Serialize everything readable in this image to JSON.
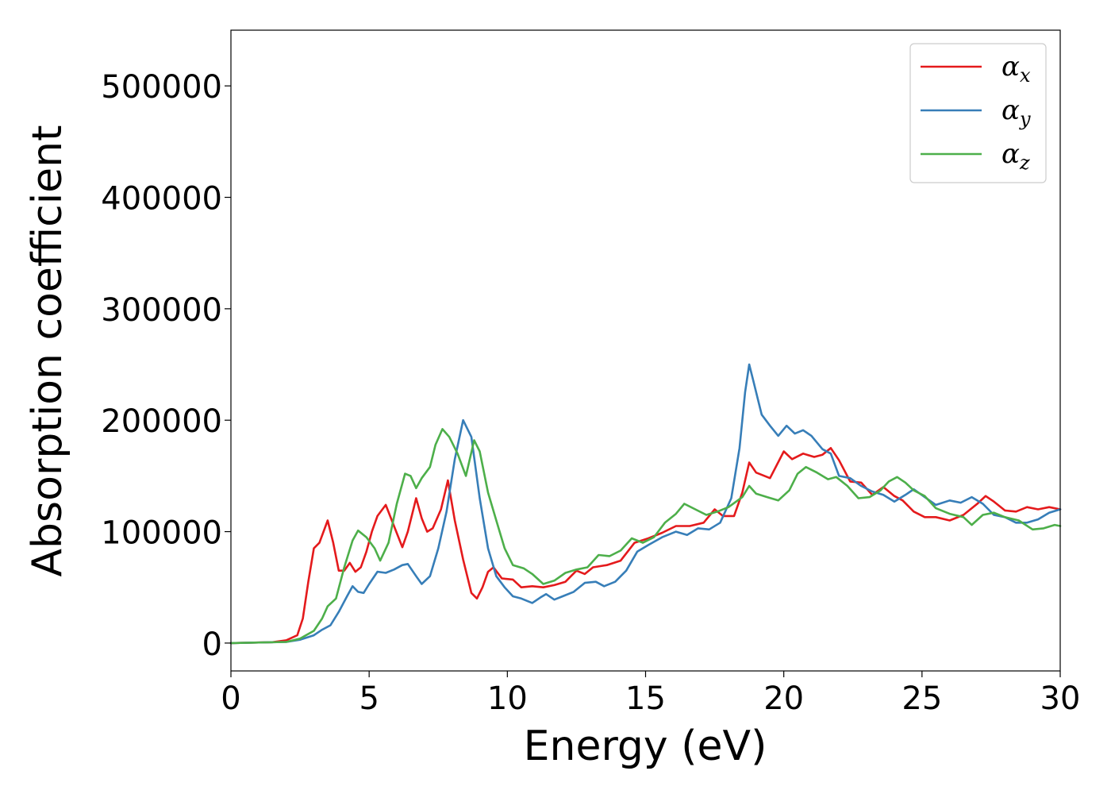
{
  "chart_data": {
    "type": "line",
    "title": "",
    "xlabel": "Energy (eV)",
    "ylabel": "Absorption coefficient",
    "xlim": [
      0,
      30
    ],
    "ylim": [
      -25000,
      550000
    ],
    "xticks": [
      0,
      5,
      10,
      15,
      20,
      25,
      30
    ],
    "yticks": [
      0,
      100000,
      200000,
      300000,
      400000,
      500000
    ],
    "xtick_labels": [
      "0",
      "5",
      "10",
      "15",
      "20",
      "25",
      "30"
    ],
    "ytick_labels": [
      "0",
      "100000",
      "200000",
      "300000",
      "400000",
      "500000"
    ],
    "grid": false,
    "legend_position": "top-right",
    "series": [
      {
        "name": "αx",
        "symbol": "α",
        "subscript": "x",
        "color": "#e41a1c",
        "points": [
          [
            0,
            0
          ],
          [
            1.5,
            800
          ],
          [
            2.0,
            2500
          ],
          [
            2.4,
            7000
          ],
          [
            2.6,
            22000
          ],
          [
            2.8,
            55000
          ],
          [
            3.0,
            85000
          ],
          [
            3.2,
            90000
          ],
          [
            3.5,
            110000
          ],
          [
            3.7,
            90000
          ],
          [
            3.9,
            65000
          ],
          [
            4.1,
            65000
          ],
          [
            4.3,
            72000
          ],
          [
            4.5,
            64000
          ],
          [
            4.7,
            68000
          ],
          [
            4.9,
            82000
          ],
          [
            5.1,
            100000
          ],
          [
            5.3,
            114000
          ],
          [
            5.6,
            124000
          ],
          [
            5.9,
            105000
          ],
          [
            6.2,
            86000
          ],
          [
            6.4,
            100000
          ],
          [
            6.7,
            130000
          ],
          [
            6.9,
            112000
          ],
          [
            7.1,
            100000
          ],
          [
            7.3,
            103000
          ],
          [
            7.6,
            120000
          ],
          [
            7.85,
            146000
          ],
          [
            8.1,
            110000
          ],
          [
            8.4,
            75000
          ],
          [
            8.7,
            45000
          ],
          [
            8.9,
            40000
          ],
          [
            9.1,
            50000
          ],
          [
            9.3,
            64000
          ],
          [
            9.5,
            68000
          ],
          [
            9.8,
            58000
          ],
          [
            10.2,
            57000
          ],
          [
            10.5,
            50000
          ],
          [
            10.9,
            51000
          ],
          [
            11.3,
            50000
          ],
          [
            11.7,
            52000
          ],
          [
            12.1,
            55000
          ],
          [
            12.5,
            65000
          ],
          [
            12.8,
            62000
          ],
          [
            13.1,
            68000
          ],
          [
            13.6,
            70000
          ],
          [
            14.1,
            74000
          ],
          [
            14.6,
            90000
          ],
          [
            15.1,
            94000
          ],
          [
            15.6,
            99000
          ],
          [
            16.1,
            105000
          ],
          [
            16.6,
            105000
          ],
          [
            17.1,
            108000
          ],
          [
            17.5,
            120000
          ],
          [
            17.8,
            114000
          ],
          [
            18.2,
            114000
          ],
          [
            18.5,
            135000
          ],
          [
            18.75,
            162000
          ],
          [
            19.0,
            153000
          ],
          [
            19.5,
            148000
          ],
          [
            20.0,
            172000
          ],
          [
            20.3,
            165000
          ],
          [
            20.7,
            170000
          ],
          [
            21.1,
            167000
          ],
          [
            21.4,
            169000
          ],
          [
            21.7,
            175000
          ],
          [
            22.0,
            164000
          ],
          [
            22.4,
            145000
          ],
          [
            22.8,
            144000
          ],
          [
            23.2,
            133000
          ],
          [
            23.6,
            140000
          ],
          [
            24.0,
            132000
          ],
          [
            24.3,
            128000
          ],
          [
            24.7,
            118000
          ],
          [
            25.1,
            113000
          ],
          [
            25.5,
            113000
          ],
          [
            26.0,
            110000
          ],
          [
            26.5,
            115000
          ],
          [
            27.0,
            125000
          ],
          [
            27.3,
            132000
          ],
          [
            27.6,
            127000
          ],
          [
            28.0,
            119000
          ],
          [
            28.4,
            118000
          ],
          [
            28.8,
            122000
          ],
          [
            29.2,
            120000
          ],
          [
            29.6,
            122000
          ],
          [
            30.0,
            120000
          ]
        ]
      },
      {
        "name": "αy",
        "symbol": "α",
        "subscript": "y",
        "color": "#377eb8",
        "points": [
          [
            0,
            0
          ],
          [
            2.0,
            1000
          ],
          [
            2.5,
            3000
          ],
          [
            3.0,
            7000
          ],
          [
            3.3,
            12000
          ],
          [
            3.6,
            16000
          ],
          [
            3.9,
            28000
          ],
          [
            4.2,
            42000
          ],
          [
            4.4,
            51000
          ],
          [
            4.6,
            46000
          ],
          [
            4.8,
            45000
          ],
          [
            5.0,
            53000
          ],
          [
            5.3,
            64000
          ],
          [
            5.6,
            63000
          ],
          [
            5.9,
            66000
          ],
          [
            6.2,
            70000
          ],
          [
            6.4,
            71000
          ],
          [
            6.7,
            60000
          ],
          [
            6.9,
            53000
          ],
          [
            7.2,
            60000
          ],
          [
            7.5,
            85000
          ],
          [
            7.8,
            118000
          ],
          [
            8.1,
            165000
          ],
          [
            8.4,
            200000
          ],
          [
            8.7,
            185000
          ],
          [
            9.0,
            130000
          ],
          [
            9.3,
            85000
          ],
          [
            9.6,
            60000
          ],
          [
            9.9,
            50000
          ],
          [
            10.2,
            42000
          ],
          [
            10.5,
            40000
          ],
          [
            10.9,
            36000
          ],
          [
            11.2,
            41000
          ],
          [
            11.4,
            44000
          ],
          [
            11.7,
            39000
          ],
          [
            12.0,
            42000
          ],
          [
            12.4,
            46000
          ],
          [
            12.8,
            54000
          ],
          [
            13.2,
            55000
          ],
          [
            13.5,
            51000
          ],
          [
            13.9,
            55000
          ],
          [
            14.3,
            65000
          ],
          [
            14.7,
            82000
          ],
          [
            15.1,
            88000
          ],
          [
            15.6,
            95000
          ],
          [
            16.1,
            100000
          ],
          [
            16.5,
            97000
          ],
          [
            16.9,
            103000
          ],
          [
            17.3,
            102000
          ],
          [
            17.7,
            108000
          ],
          [
            18.1,
            130000
          ],
          [
            18.4,
            175000
          ],
          [
            18.6,
            225000
          ],
          [
            18.75,
            250000
          ],
          [
            18.9,
            235000
          ],
          [
            19.2,
            205000
          ],
          [
            19.5,
            195000
          ],
          [
            19.8,
            186000
          ],
          [
            20.1,
            195000
          ],
          [
            20.4,
            188000
          ],
          [
            20.7,
            191000
          ],
          [
            21.0,
            186000
          ],
          [
            21.4,
            174000
          ],
          [
            21.7,
            170000
          ],
          [
            22.0,
            150000
          ],
          [
            22.4,
            148000
          ],
          [
            22.8,
            141000
          ],
          [
            23.2,
            136000
          ],
          [
            23.6,
            133000
          ],
          [
            24.0,
            127000
          ],
          [
            24.4,
            133000
          ],
          [
            24.7,
            138000
          ],
          [
            25.1,
            131000
          ],
          [
            25.5,
            124000
          ],
          [
            26.0,
            128000
          ],
          [
            26.4,
            126000
          ],
          [
            26.8,
            131000
          ],
          [
            27.2,
            125000
          ],
          [
            27.6,
            115000
          ],
          [
            28.0,
            113000
          ],
          [
            28.4,
            108000
          ],
          [
            28.8,
            108000
          ],
          [
            29.2,
            111000
          ],
          [
            29.6,
            117000
          ],
          [
            30.0,
            120000
          ]
        ]
      },
      {
        "name": "αz",
        "symbol": "α",
        "subscript": "z",
        "color": "#4daf4a",
        "points": [
          [
            0,
            0
          ],
          [
            2.0,
            1000
          ],
          [
            2.5,
            4000
          ],
          [
            3.0,
            11000
          ],
          [
            3.3,
            22000
          ],
          [
            3.5,
            33000
          ],
          [
            3.8,
            40000
          ],
          [
            4.1,
            68000
          ],
          [
            4.4,
            92000
          ],
          [
            4.6,
            101000
          ],
          [
            4.9,
            95000
          ],
          [
            5.2,
            85000
          ],
          [
            5.4,
            74000
          ],
          [
            5.7,
            90000
          ],
          [
            6.0,
            125000
          ],
          [
            6.3,
            152000
          ],
          [
            6.5,
            150000
          ],
          [
            6.7,
            139000
          ],
          [
            6.9,
            148000
          ],
          [
            7.2,
            158000
          ],
          [
            7.4,
            178000
          ],
          [
            7.65,
            192000
          ],
          [
            7.9,
            185000
          ],
          [
            8.2,
            170000
          ],
          [
            8.5,
            150000
          ],
          [
            8.8,
            182000
          ],
          [
            9.0,
            172000
          ],
          [
            9.3,
            135000
          ],
          [
            9.6,
            110000
          ],
          [
            9.9,
            85000
          ],
          [
            10.2,
            70000
          ],
          [
            10.6,
            67000
          ],
          [
            10.9,
            62000
          ],
          [
            11.3,
            53000
          ],
          [
            11.7,
            56000
          ],
          [
            12.1,
            63000
          ],
          [
            12.5,
            66000
          ],
          [
            12.9,
            68000
          ],
          [
            13.3,
            79000
          ],
          [
            13.7,
            78000
          ],
          [
            14.1,
            83000
          ],
          [
            14.5,
            94000
          ],
          [
            14.9,
            90000
          ],
          [
            15.3,
            95000
          ],
          [
            15.7,
            108000
          ],
          [
            16.1,
            116000
          ],
          [
            16.4,
            125000
          ],
          [
            16.8,
            120000
          ],
          [
            17.2,
            115000
          ],
          [
            17.6,
            118000
          ],
          [
            18.0,
            122000
          ],
          [
            18.5,
            131000
          ],
          [
            18.75,
            141000
          ],
          [
            19.0,
            134000
          ],
          [
            19.4,
            131000
          ],
          [
            19.8,
            128000
          ],
          [
            20.2,
            137000
          ],
          [
            20.5,
            152000
          ],
          [
            20.8,
            158000
          ],
          [
            21.2,
            153000
          ],
          [
            21.6,
            147000
          ],
          [
            21.9,
            149000
          ],
          [
            22.3,
            141000
          ],
          [
            22.7,
            130000
          ],
          [
            23.1,
            131000
          ],
          [
            23.5,
            137000
          ],
          [
            23.8,
            145000
          ],
          [
            24.1,
            149000
          ],
          [
            24.4,
            144000
          ],
          [
            24.7,
            137000
          ],
          [
            25.1,
            132000
          ],
          [
            25.5,
            121000
          ],
          [
            26.0,
            116000
          ],
          [
            26.5,
            113000
          ],
          [
            26.8,
            106000
          ],
          [
            27.2,
            115000
          ],
          [
            27.6,
            117000
          ],
          [
            28.0,
            113000
          ],
          [
            28.5,
            110000
          ],
          [
            29.0,
            102000
          ],
          [
            29.4,
            103000
          ],
          [
            29.8,
            106000
          ],
          [
            30.0,
            105000
          ]
        ]
      }
    ]
  }
}
